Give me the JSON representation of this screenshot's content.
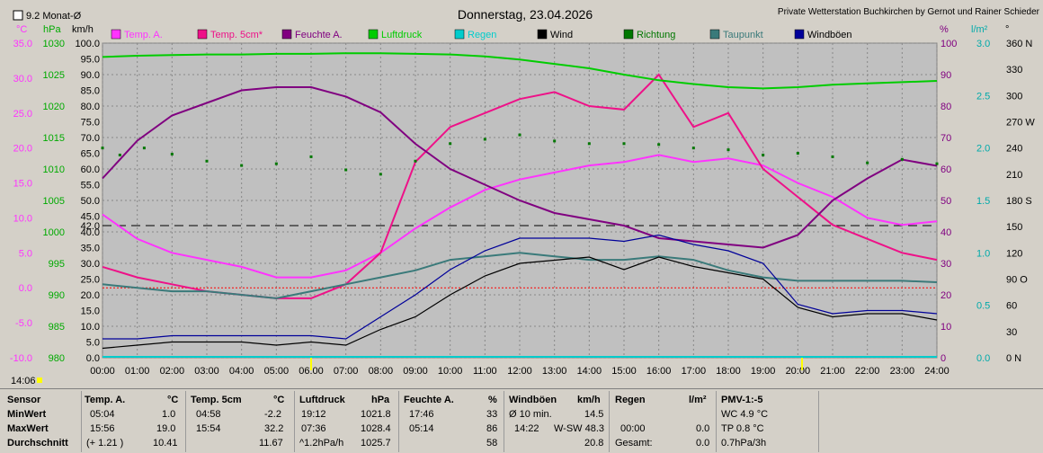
{
  "header": {
    "checkbox_label": "9.2 Monat-Ø",
    "title": "Donnerstag, 23.04.2026",
    "station": "Private Wetterstation Buchkirchen by Gernot und Rainer Schieder",
    "time_marker": "14:06"
  },
  "colors": {
    "temp": "#ff33ff",
    "temp5": "#ee1188",
    "humidity": "#800080",
    "pressure": "#00cc00",
    "rain": "#00cccc",
    "wind": "#000000",
    "direction": "#007700",
    "dewpoint": "#3a7a7a",
    "gust": "#000099"
  },
  "chart_data": {
    "type": "line",
    "x_ticks": [
      "00:00",
      "01:00",
      "02:00",
      "03:00",
      "04:00",
      "05:00",
      "06:00",
      "07:00",
      "08:00",
      "09:00",
      "10:00",
      "11:00",
      "12:00",
      "13:00",
      "14:00",
      "15:00",
      "16:00",
      "17:00",
      "18:00",
      "19:00",
      "20:00",
      "21:00",
      "22:00",
      "23:00",
      "24:00"
    ],
    "axes": {
      "temp": {
        "unit": "°C",
        "min": -10,
        "max": 35,
        "ticks": [
          "35.0",
          "30.0",
          "25.0",
          "20.0",
          "15.0",
          "10.0",
          "5.0",
          "0.0",
          "-5.0",
          "-10.0"
        ]
      },
      "pressure": {
        "unit": "hPa",
        "min": 980,
        "max": 1030,
        "ticks": [
          "1030",
          "1025",
          "1020",
          "1015",
          "1010",
          "1005",
          "1000",
          "995",
          "990",
          "985",
          "980"
        ]
      },
      "wind": {
        "unit": "km/h",
        "min": 0,
        "max": 100,
        "ticks": [
          "100.0",
          "95.0",
          "90.0",
          "85.0",
          "80.0",
          "75.0",
          "70.0",
          "65.0",
          "60.0",
          "55.0",
          "50.0",
          "45.0",
          "42.0",
          "40.0",
          "35.0",
          "30.0",
          "25.0",
          "20.0",
          "15.0",
          "10.0",
          "5.0",
          "0.0"
        ]
      },
      "humidity": {
        "unit": "%",
        "min": 0,
        "max": 100,
        "ticks": [
          "100",
          "90",
          "80",
          "70",
          "60",
          "50",
          "40",
          "30",
          "20",
          "10",
          "0"
        ]
      },
      "rain": {
        "unit": "l/m²",
        "min": 0,
        "max": 3,
        "ticks": [
          "3.0",
          "2.5",
          "2.0",
          "1.5",
          "1.0",
          "0.5",
          "0.0"
        ]
      },
      "direction": {
        "unit": "°",
        "min": 0,
        "max": 360,
        "ticks": [
          "360 N",
          "330",
          "300",
          "270 W",
          "240",
          "210",
          "180 S",
          "150",
          "120",
          "90 O",
          "60",
          "30",
          "0 N"
        ]
      }
    },
    "legend": [
      "Temp. A.",
      "Temp. 5cm*",
      "Feuchte A.",
      "Luftdruck",
      "Regen",
      "Wind",
      "Richtung",
      "Taupunkt",
      "Windböen"
    ],
    "series": [
      {
        "name": "Temp. A.",
        "axis": "temp",
        "x": [
          0,
          1,
          2,
          3,
          4,
          5,
          6,
          7,
          8,
          9,
          10,
          11,
          12,
          13,
          14,
          15,
          16,
          17,
          18,
          19,
          20,
          21,
          22,
          23,
          24
        ],
        "values": [
          10.5,
          7.0,
          5.0,
          4.0,
          3.0,
          1.5,
          1.5,
          2.5,
          5.0,
          8.5,
          11.5,
          14.0,
          15.5,
          16.5,
          17.5,
          18.0,
          19.0,
          18.0,
          18.5,
          17.5,
          15.0,
          13.0,
          10.0,
          9.0,
          9.5
        ]
      },
      {
        "name": "Temp. 5cm*",
        "axis": "temp",
        "x": [
          0,
          1,
          2,
          3,
          4,
          5,
          6,
          7,
          8,
          9,
          10,
          11,
          12,
          13,
          14,
          15,
          16,
          17,
          18,
          19,
          20,
          21,
          22,
          23,
          24
        ],
        "values": [
          3.0,
          1.5,
          0.5,
          -0.5,
          -1.0,
          -1.5,
          -1.5,
          0.5,
          5.0,
          18.0,
          23.0,
          25.0,
          27.0,
          28.0,
          26.0,
          25.5,
          30.5,
          23.0,
          25.0,
          17.0,
          13.0,
          9.0,
          7.0,
          5.0,
          4.0
        ]
      },
      {
        "name": "Feuchte A.",
        "axis": "humidity",
        "x": [
          0,
          1,
          2,
          3,
          4,
          5,
          6,
          7,
          8,
          9,
          10,
          11,
          12,
          13,
          14,
          15,
          16,
          17,
          18,
          19,
          20,
          21,
          22,
          23,
          24
        ],
        "values": [
          57,
          69,
          77,
          81,
          85,
          86,
          86,
          83,
          78,
          68,
          60,
          55,
          50,
          46,
          44,
          42,
          38,
          37,
          36,
          35,
          39,
          50,
          57,
          63,
          61
        ]
      },
      {
        "name": "Luftdruck",
        "axis": "pressure",
        "x": [
          0,
          1,
          2,
          3,
          4,
          5,
          6,
          7,
          8,
          9,
          10,
          11,
          12,
          13,
          14,
          15,
          16,
          17,
          18,
          19,
          20,
          21,
          22,
          23,
          24
        ],
        "values": [
          1027.8,
          1028.0,
          1028.1,
          1028.2,
          1028.2,
          1028.3,
          1028.3,
          1028.4,
          1028.4,
          1028.3,
          1028.2,
          1027.9,
          1027.4,
          1026.7,
          1026.0,
          1025.0,
          1024.1,
          1023.5,
          1023.0,
          1022.8,
          1023.0,
          1023.4,
          1023.6,
          1023.8,
          1024.0
        ]
      },
      {
        "name": "Taupunkt",
        "axis": "temp",
        "x": [
          0,
          1,
          2,
          3,
          4,
          5,
          6,
          7,
          8,
          9,
          10,
          11,
          12,
          13,
          14,
          15,
          16,
          17,
          18,
          19,
          20,
          21,
          22,
          23,
          24
        ],
        "values": [
          0.5,
          0.0,
          -0.5,
          -0.5,
          -1.0,
          -1.5,
          -0.5,
          0.5,
          1.5,
          2.5,
          4.0,
          4.5,
          5.0,
          4.5,
          4.0,
          4.0,
          4.5,
          4.0,
          2.5,
          1.5,
          1.0,
          1.0,
          1.0,
          1.0,
          0.8
        ]
      },
      {
        "name": "Wind",
        "axis": "wind",
        "x": [
          0,
          1,
          2,
          3,
          4,
          5,
          6,
          7,
          8,
          9,
          10,
          11,
          12,
          13,
          14,
          15,
          16,
          17,
          18,
          19,
          20,
          21,
          22,
          23,
          24
        ],
        "values": [
          3,
          4,
          5,
          5,
          5,
          4,
          5,
          4,
          9,
          13,
          20,
          26,
          30,
          31,
          32,
          28,
          32,
          29,
          27,
          25,
          16,
          13,
          14,
          14,
          12
        ]
      },
      {
        "name": "Windböen",
        "axis": "wind",
        "x": [
          0,
          1,
          2,
          3,
          4,
          5,
          6,
          7,
          8,
          9,
          10,
          11,
          12,
          13,
          14,
          15,
          16,
          17,
          18,
          19,
          20,
          21,
          22,
          23,
          24
        ],
        "values": [
          6,
          6,
          7,
          7,
          7,
          7,
          7,
          6,
          13,
          20,
          28,
          34,
          38,
          38,
          38,
          37,
          39,
          36,
          34,
          30,
          17,
          14,
          15,
          15,
          14
        ]
      },
      {
        "name": "Richtung",
        "axis": "direction",
        "x": [
          0,
          0.5,
          1.2,
          2,
          3,
          4,
          5,
          6,
          7,
          8,
          9,
          10,
          11,
          12,
          13,
          14,
          15,
          16,
          17,
          18,
          19,
          20,
          21,
          22,
          23,
          24
        ],
        "values": [
          240,
          232,
          240,
          233,
          225,
          220,
          222,
          230,
          215,
          210,
          225,
          245,
          250,
          255,
          248,
          245,
          245,
          244,
          240,
          238,
          232,
          234,
          230,
          223,
          227,
          222
        ]
      }
    ],
    "reference_line": {
      "axis": "wind",
      "value": 42
    },
    "markers": [
      "06:00",
      "20:00"
    ]
  },
  "stats": {
    "headers": {
      "sensor": "Sensor",
      "min": "MinWert",
      "max": "MaxWert",
      "avg": "Durchschnitt"
    },
    "temp": {
      "label": "Temp. A.",
      "unit": "°C",
      "min_time": "05:04",
      "min": "1.0",
      "max_time": "15:56",
      "max": "19.0",
      "avg_note": "(+ 1.21 )",
      "avg": "10.41"
    },
    "temp5": {
      "label": "Temp. 5cm",
      "unit": "°C",
      "min_time": "04:58",
      "min": "-2.2",
      "max_time": "15:54",
      "max": "32.2",
      "avg": "11.67"
    },
    "pressure": {
      "label": "Luftdruck",
      "unit": "hPa",
      "min_time": "19:12",
      "min": "1021.8",
      "max_time": "07:36",
      "max": "1028.4",
      "avg_note": "^1.2hPa/h",
      "avg": "1025.7"
    },
    "humidity": {
      "label": "Feuchte A.",
      "unit": "%",
      "min_time": "17:46",
      "min": "33",
      "max_time": "05:14",
      "max": "86",
      "avg": "58"
    },
    "gust": {
      "label": "Windböen",
      "unit": "km/h",
      "row1_label": "Ø 10 min.",
      "row1": "14.5",
      "max_time": "14:22",
      "max_dir": "W-SW 48.3",
      "avg": "20.8"
    },
    "rain": {
      "label": "Regen",
      "unit": "l/m²",
      "row1": "",
      "time": "00:00",
      "max": "0.0",
      "total_label": "Gesamt:",
      "total": "0.0"
    },
    "pmv": {
      "label": "PMV-1:-5",
      "wc": "WC 4.9 °C",
      "tp": "TP 0.8 °C",
      "trend": "0.7hPa/3h"
    }
  }
}
